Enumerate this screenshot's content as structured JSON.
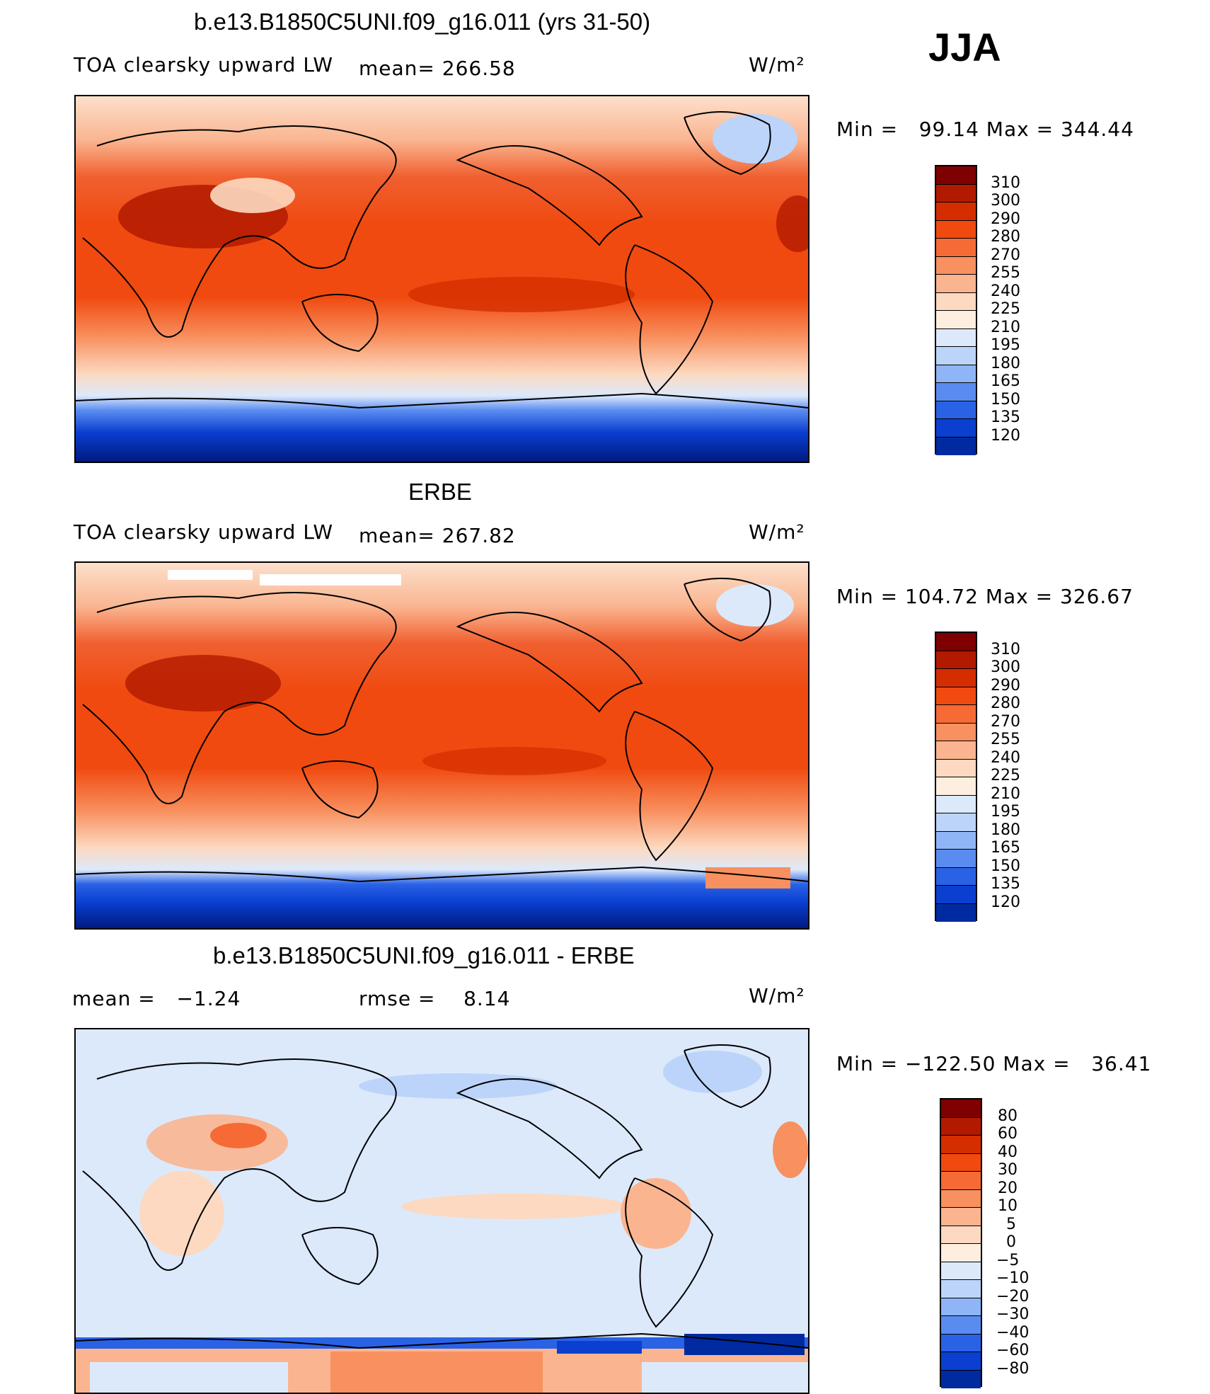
{
  "season": "JJA",
  "panels": [
    {
      "title": "b.e13.B1850C5UNI.f09_g16.011 (yrs 31-50)",
      "left_label": "TOA clearsky upward LW",
      "mid_label": "mean= 266.58",
      "units": "W/m²",
      "minmax": "Min =   99.14 Max = 344.44"
    },
    {
      "title": "ERBE",
      "left_label": "TOA clearsky upward LW",
      "mid_label": "mean= 267.82",
      "units": "W/m²",
      "minmax": "Min = 104.72 Max = 326.67"
    },
    {
      "title": "b.e13.B1850C5UNI.f09_g16.011 - ERBE",
      "left_label": "mean =   −1.24",
      "mid_label": "rmse =    8.14",
      "units": "W/m²",
      "minmax": "Min = −122.50 Max =   36.41"
    }
  ],
  "colorbars": {
    "absolute": {
      "labels": [
        "310",
        "300",
        "290",
        "280",
        "270",
        "255",
        "240",
        "225",
        "210",
        "195",
        "180",
        "165",
        "150",
        "135",
        "120"
      ],
      "colors": [
        "#7f0000",
        "#b21a00",
        "#d42e00",
        "#f04a10",
        "#f56a35",
        "#f8905f",
        "#fab590",
        "#fcd9c0",
        "#fdeee0",
        "#dce9fb",
        "#bcd4fa",
        "#8fb5f6",
        "#5a8cf0",
        "#2a62e6",
        "#0a3fd0",
        "#002aa0"
      ]
    },
    "difference": {
      "labels": [
        "80",
        "60",
        "40",
        "30",
        "20",
        "10",
        "5",
        "0",
        "−5",
        "−10",
        "−20",
        "−30",
        "−40",
        "−60",
        "−80"
      ],
      "colors": [
        "#7f0000",
        "#b21a00",
        "#d42e00",
        "#f04a10",
        "#f56a35",
        "#f8905f",
        "#fab590",
        "#fcd9c0",
        "#fdeee0",
        "#dce9fb",
        "#bcd4fa",
        "#8fb5f6",
        "#5a8cf0",
        "#2a62e6",
        "#0a3fd0",
        "#002aa0"
      ]
    }
  }
}
